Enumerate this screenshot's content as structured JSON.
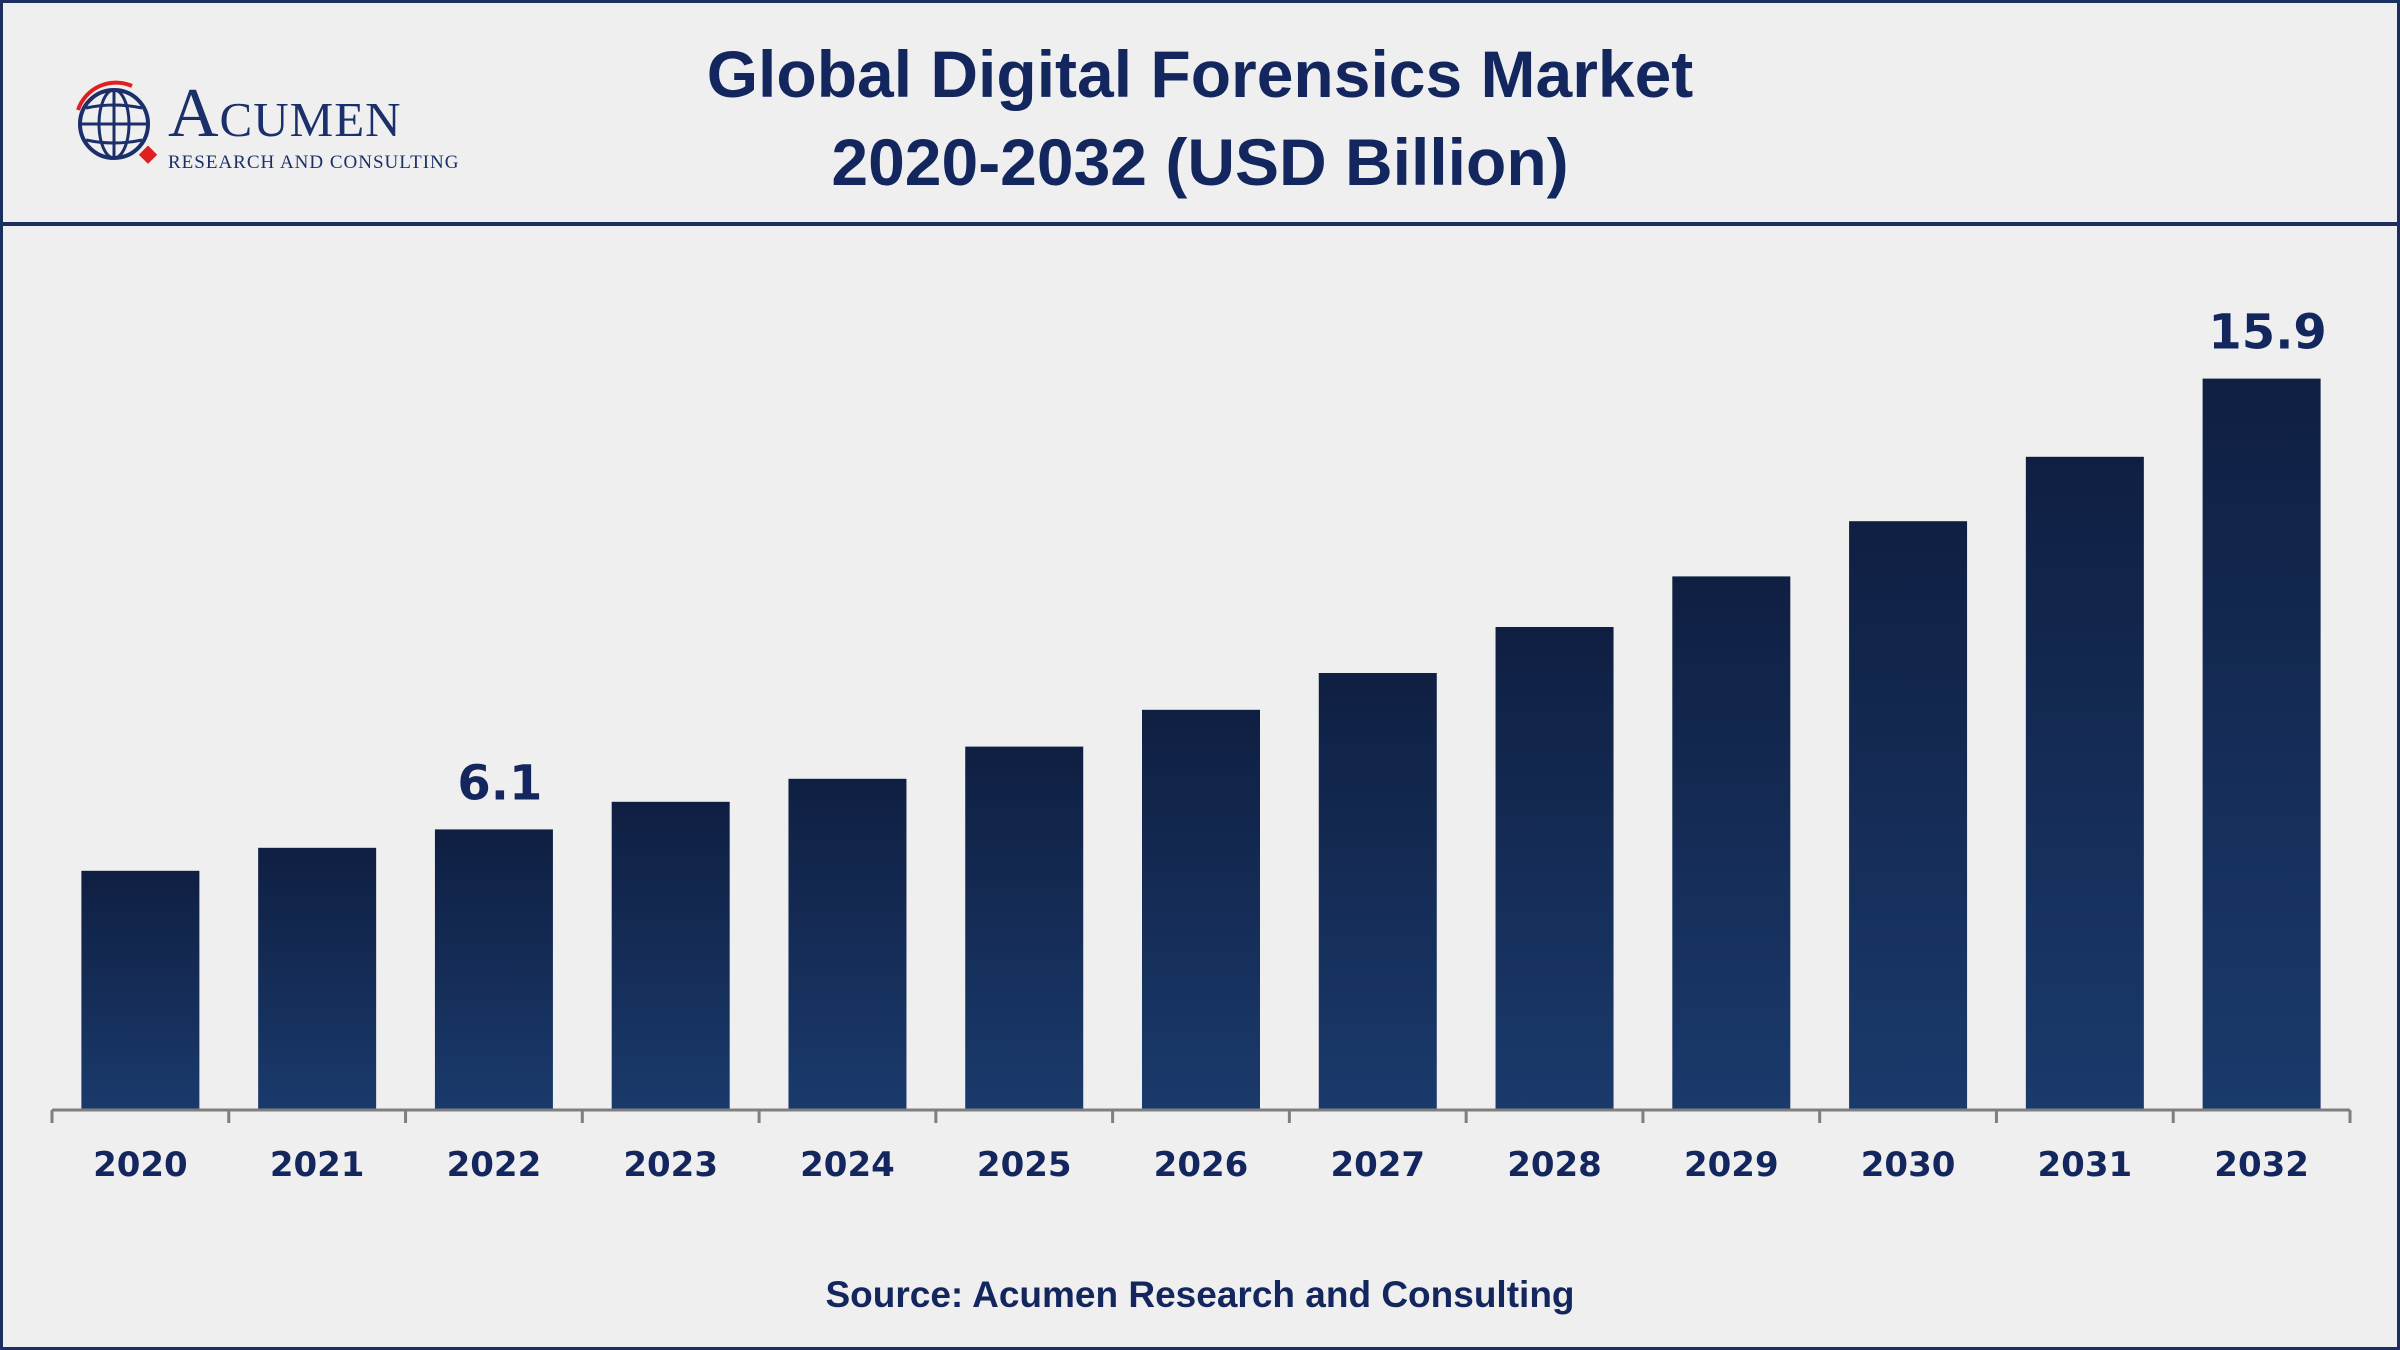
{
  "header": {
    "title_line1": "Global Digital Forensics Market",
    "title_line2": "2020-2032 (USD Billion)"
  },
  "logo": {
    "wordmark": "Acumen",
    "tagline": "RESEARCH AND CONSULTING",
    "icon": "globe-icon"
  },
  "source": "Source: Acumen Research and Consulting",
  "colors": {
    "title": "#14265e",
    "bar_top": "#0f1f42",
    "bar_bottom": "#1a3a6c",
    "axis": "#7f7f7f",
    "logo_accent": "#e02020"
  },
  "chart_data": {
    "type": "bar",
    "title": "Global Digital Forensics Market 2020-2032 (USD Billion)",
    "xlabel": "",
    "ylabel": "",
    "categories": [
      "2020",
      "2021",
      "2022",
      "2023",
      "2024",
      "2025",
      "2026",
      "2027",
      "2028",
      "2029",
      "2030",
      "2031",
      "2032"
    ],
    "values": [
      5.2,
      5.7,
      6.1,
      6.7,
      7.2,
      7.9,
      8.7,
      9.5,
      10.5,
      11.6,
      12.8,
      14.2,
      15.9
    ],
    "data_labels": [
      {
        "index": 2,
        "text": "6.1"
      },
      {
        "index": 12,
        "text": "15.9"
      }
    ],
    "ylim": [
      0,
      18
    ],
    "grid": false,
    "legend": "none"
  }
}
